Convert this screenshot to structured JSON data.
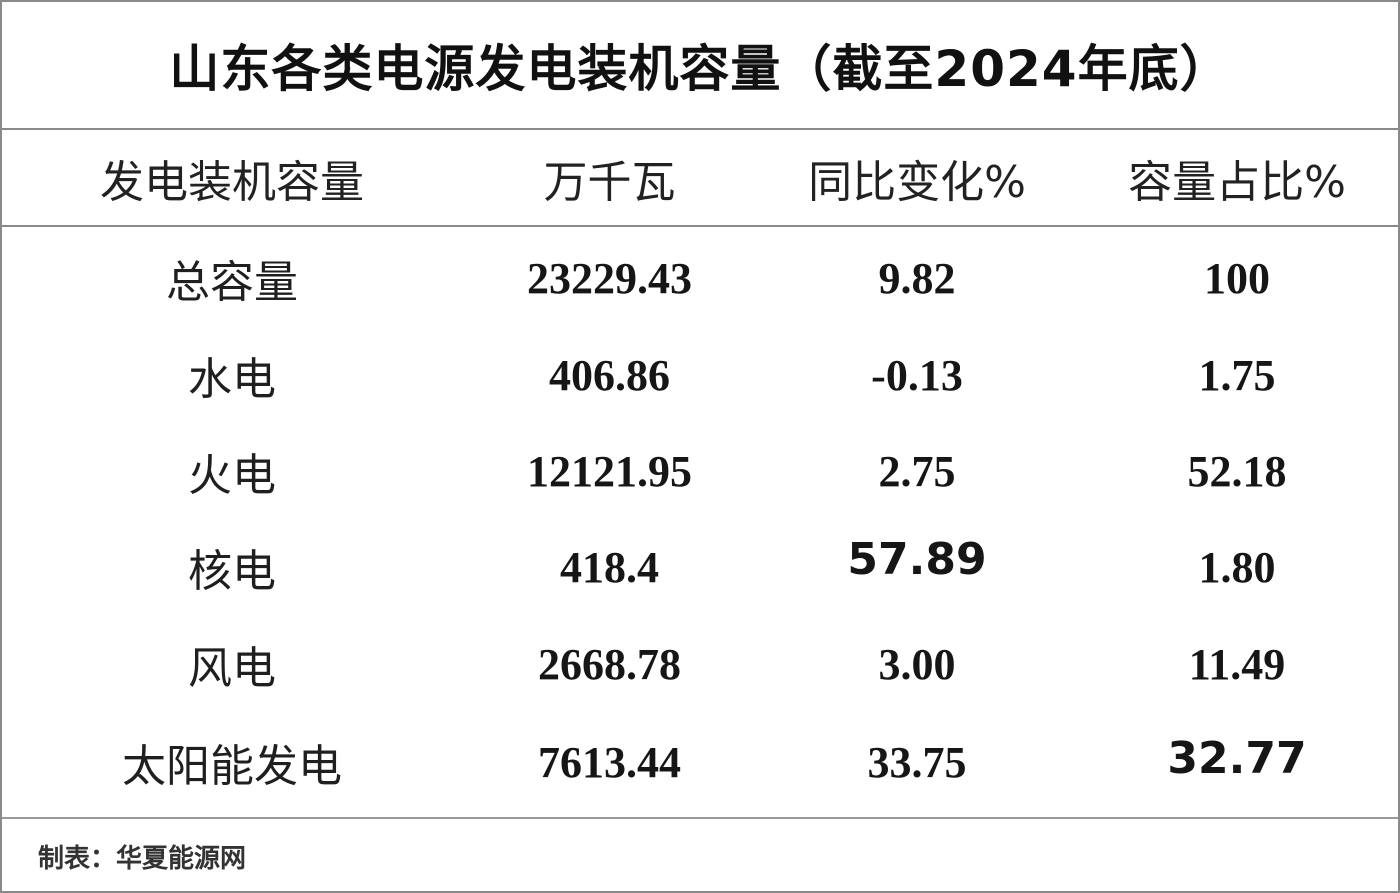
{
  "title": "山东各类电源发电装机容量（截至2024年底）",
  "header": [
    "发电装机容量",
    "万千瓦",
    "同比变化%",
    "容量占比%"
  ],
  "rows": [
    {
      "name": "总容量",
      "capacity": "23229.43",
      "yoy": "9.82",
      "share": "100"
    },
    {
      "name": "水电",
      "capacity": "406.86",
      "yoy": "-0.13",
      "share": "1.75"
    },
    {
      "name": "火电",
      "capacity": "12121.95",
      "yoy": "2.75",
      "share": "52.18"
    },
    {
      "name": "核电",
      "capacity": "418.4",
      "yoy": "57.89",
      "share": "1.80"
    },
    {
      "name": "风电",
      "capacity": "2668.78",
      "yoy": "3.00",
      "share": "11.49"
    },
    {
      "name": "太阳能发电",
      "capacity": "7613.44",
      "yoy": "33.75",
      "share": "32.77"
    }
  ],
  "footer": "制表：华夏能源网"
}
